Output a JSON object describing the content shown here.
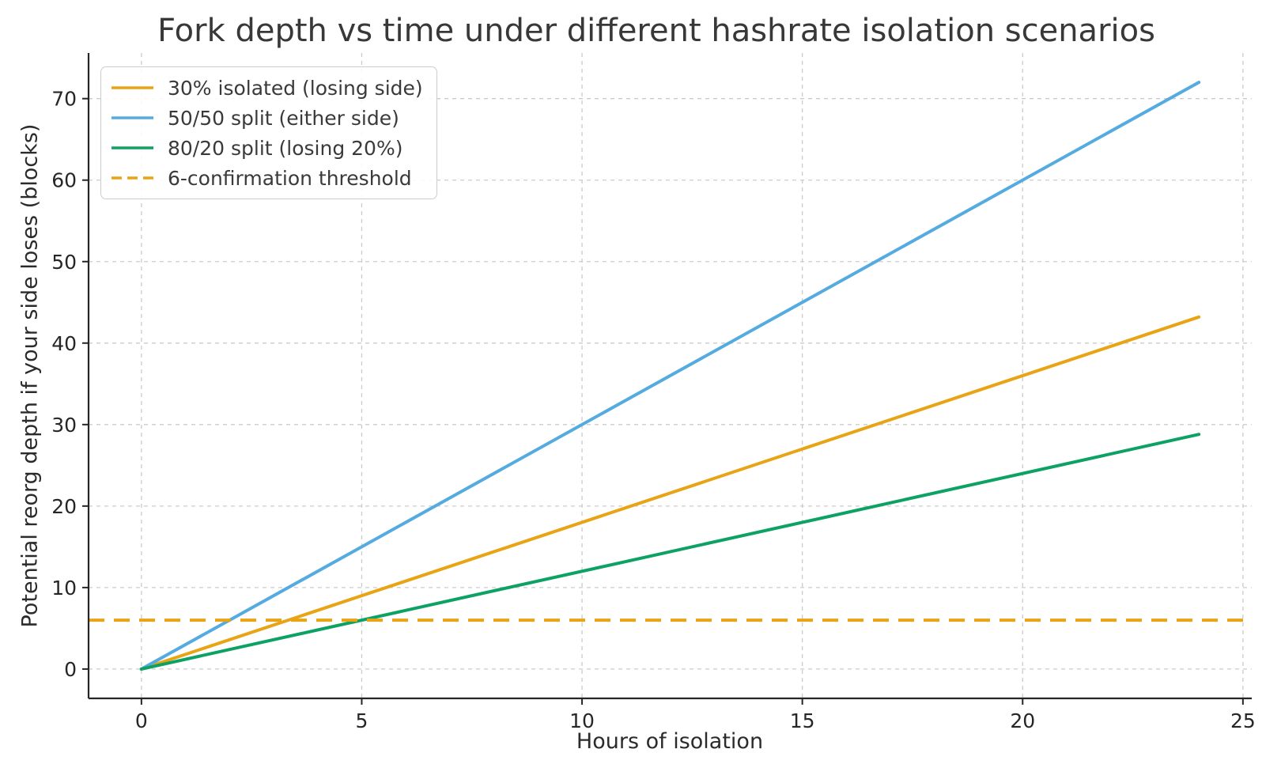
{
  "chart_data": {
    "type": "line",
    "title": "Fork depth vs time under different hashrate isolation scenarios",
    "xlabel": "Hours of isolation",
    "ylabel": "Potential reorg depth if your side loses (blocks)",
    "xlim": [
      -1.2,
      25.2
    ],
    "ylim": [
      -3.6,
      75.6
    ],
    "x_ticks": [
      0,
      5,
      10,
      15,
      20,
      25
    ],
    "y_ticks": [
      0,
      10,
      20,
      30,
      40,
      50,
      60,
      70
    ],
    "grid": true,
    "grid_style": "dashed",
    "legend_position": "upper left",
    "x": [
      0,
      24
    ],
    "series": [
      {
        "name": "30% isolated (losing side)",
        "color": "#E8A414",
        "style": "solid",
        "values": [
          0,
          43.2
        ]
      },
      {
        "name": "50/50 split (either side)",
        "color": "#54ABDF",
        "style": "solid",
        "values": [
          0,
          72
        ]
      },
      {
        "name": "80/20 split (losing 20%)",
        "color": "#0EA164",
        "style": "solid",
        "values": [
          0,
          28.8
        ]
      }
    ],
    "threshold": {
      "name": "6-confirmation threshold",
      "color": "#E8A414",
      "style": "dashed",
      "value": 6
    }
  },
  "colors": {
    "background": "#ffffff",
    "grid": "#cbcbcb",
    "axis": "#262626",
    "text": "#2b2b2b",
    "legend_border": "#cccccc"
  }
}
